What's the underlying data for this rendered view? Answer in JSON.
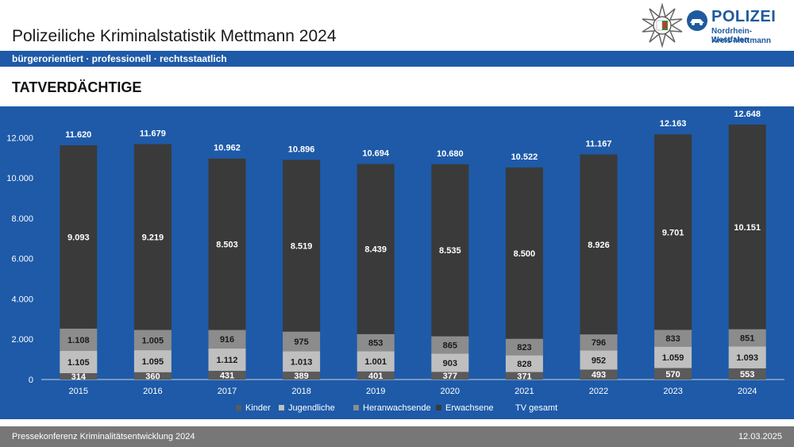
{
  "header": {
    "title": "Polizeiliche Kriminalstatistik Mettmann 2024",
    "slogan": "bürgerorientiert · professionell · rechtsstaatlich"
  },
  "logo": {
    "brand": "POLIZEI",
    "line1": "Nordrhein-Westfalen",
    "line2": "Kreis Mettmann"
  },
  "section": {
    "title": "TATVERDÄCHTIGE"
  },
  "chart_data": {
    "type": "bar",
    "stacked": true,
    "title": "TATVERDÄCHTIGE",
    "categories": [
      "2015",
      "2016",
      "2017",
      "2018",
      "2019",
      "2020",
      "2021",
      "2022",
      "2023",
      "2024"
    ],
    "series": [
      {
        "name": "Kinder",
        "values": [
          314,
          360,
          431,
          389,
          401,
          377,
          371,
          493,
          570,
          553
        ],
        "labels": [
          "314",
          "360",
          "431",
          "389",
          "401",
          "377",
          "371",
          "493",
          "570",
          "553"
        ],
        "color": "#5a5a5a",
        "label_color": "#ffffff"
      },
      {
        "name": "Jugendliche",
        "values": [
          1105,
          1095,
          1112,
          1013,
          1001,
          903,
          828,
          952,
          1059,
          1093
        ],
        "labels": [
          "1.105",
          "1.095",
          "1.112",
          "1.013",
          "1.001",
          "903",
          "828",
          "952",
          "1.059",
          "1.093"
        ],
        "color": "#bfbfbf",
        "label_color": "#1a1a1a"
      },
      {
        "name": "Heranwachsende",
        "values": [
          1108,
          1005,
          916,
          975,
          853,
          865,
          823,
          796,
          833,
          851
        ],
        "labels": [
          "1.108",
          "1.005",
          "916",
          "975",
          "853",
          "865",
          "823",
          "796",
          "833",
          "851"
        ],
        "color": "#8c8c8c",
        "label_color": "#1a1a1a"
      },
      {
        "name": "Erwachsene",
        "values": [
          9093,
          9219,
          8503,
          8519,
          8439,
          8535,
          8500,
          8926,
          9701,
          10151
        ],
        "labels": [
          "9.093",
          "9.219",
          "8.503",
          "8.519",
          "8.439",
          "8.535",
          "8.500",
          "8.926",
          "9.701",
          "10.151"
        ],
        "color": "#3a3a3a",
        "label_color": "#ffffff"
      }
    ],
    "totals": {
      "name": "TV gesamt",
      "values": [
        11620,
        11679,
        10962,
        10896,
        10694,
        10680,
        10522,
        11167,
        12163,
        12648
      ],
      "labels": [
        "11.620",
        "11.679",
        "10.962",
        "10.896",
        "10.694",
        "10.680",
        "10.522",
        "11.167",
        "12.163",
        "12.648"
      ]
    },
    "ylim": [
      0,
      13000
    ],
    "yticks": [
      0,
      2000,
      4000,
      6000,
      8000,
      10000,
      12000
    ],
    "ytick_labels": [
      "0",
      "2.000",
      "4.000",
      "6.000",
      "8.000",
      "10.000",
      "12.000"
    ],
    "xlabel": "",
    "ylabel": "",
    "grid": false,
    "legend": [
      "Kinder",
      "Jugendliche",
      "Heranwachsende",
      "Erwachsene",
      "TV gesamt"
    ],
    "legend_position": "bottom"
  },
  "footer": {
    "left": "Pressekonferenz Kriminalitätsentwicklung 2024",
    "right": "12.03.2025"
  },
  "colors": {
    "brand_blue": "#1e5aa8",
    "footer_gray": "#777777"
  }
}
